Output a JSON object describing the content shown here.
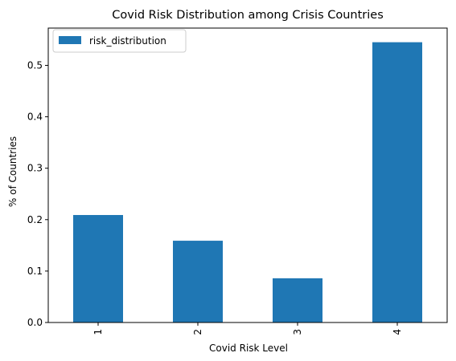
{
  "chart_data": {
    "type": "bar",
    "title": "Covid Risk Distribution among Crisis Countries",
    "xlabel": "Covid Risk Level",
    "ylabel": "% of Countries",
    "categories": [
      "1",
      "2",
      "3",
      "4"
    ],
    "series": [
      {
        "name": "risk_distribution",
        "values": [
          0.209,
          0.159,
          0.086,
          0.545
        ],
        "color": "#1f77b4"
      }
    ],
    "ylim": [
      0,
      0.5725
    ],
    "yticks": [
      0.0,
      0.1,
      0.2,
      0.3,
      0.4,
      0.5
    ],
    "ytick_labels": [
      "0.0",
      "0.1",
      "0.2",
      "0.3",
      "0.4",
      "0.5"
    ],
    "x_tick_rotation": 90,
    "grid": false,
    "legend_position": "upper left"
  }
}
